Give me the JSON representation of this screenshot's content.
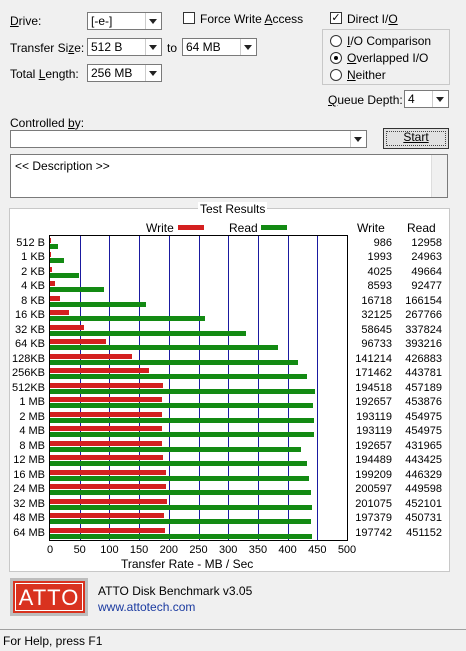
{
  "form": {
    "drive_label": "Drive:",
    "drive_value": "[-e-]",
    "transfer_size_label": "Transfer Size:",
    "transfer_from": "512 B",
    "to_label": "to",
    "transfer_to": "64 MB",
    "total_length_label": "Total Length:",
    "total_length_value": "256 MB",
    "force_write_access_label": "Force Write Access",
    "force_write_access_checked": false,
    "direct_io_label": "Direct I/O",
    "direct_io_checked": true,
    "io_comparison_label": "I/O Comparison",
    "overlapped_io_label": "Overlapped I/O",
    "neither_label": "Neither",
    "selected_io_mode": "Overlapped I/O",
    "queue_depth_label": "Queue Depth:",
    "queue_depth_value": "4",
    "controlled_by_label": "Controlled by:",
    "controlled_by_value": "",
    "start_label": "Start",
    "description_text": "<< Description >>"
  },
  "results": {
    "group_title": "Test Results",
    "write_legend": "Write",
    "read_legend": "Read",
    "write_header": "Write",
    "read_header": "Read",
    "write_color": "#d42020",
    "read_color": "#138a13"
  },
  "chart_data": {
    "type": "bar",
    "orientation": "horizontal",
    "categories": [
      "512 B",
      "1 KB",
      "2 KB",
      "4 KB",
      "8 KB",
      "16 KB",
      "32 KB",
      "64 KB",
      "128KB",
      "256KB",
      "512KB",
      "1 MB",
      "2 MB",
      "4 MB",
      "8 MB",
      "12 MB",
      "16 MB",
      "24 MB",
      "32 MB",
      "48 MB",
      "64 MB"
    ],
    "series": [
      {
        "name": "Write",
        "values": [
          986,
          1993,
          4025,
          8593,
          16718,
          32125,
          58645,
          96733,
          141214,
          171462,
          194518,
          192657,
          193119,
          193119,
          192657,
          194489,
          199209,
          200597,
          201075,
          197379,
          197742
        ]
      },
      {
        "name": "Read",
        "values": [
          12958,
          24963,
          49664,
          92477,
          166154,
          267766,
          337824,
          393216,
          426883,
          443781,
          457189,
          453876,
          454975,
          454975,
          431965,
          443425,
          446329,
          449598,
          452101,
          450731,
          451152
        ]
      }
    ],
    "xlabel": "Transfer Rate - MB / Sec",
    "xlim": [
      0,
      500
    ],
    "xticks": [
      0,
      50,
      100,
      150,
      200,
      250,
      300,
      350,
      400,
      450,
      500
    ],
    "grid": true,
    "legend": "top"
  },
  "footer": {
    "logo_text": "ATTO",
    "app_title": "ATTO Disk Benchmark v3.05",
    "url": "www.attotech.com",
    "status_text": "For Help, press F1"
  }
}
